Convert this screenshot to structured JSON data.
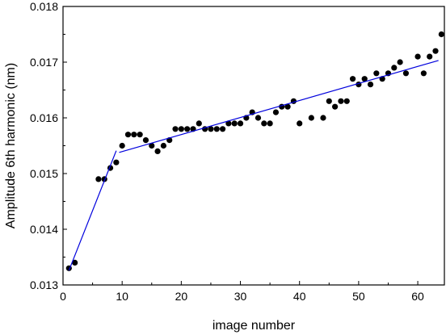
{
  "chart_data": {
    "type": "scatter",
    "title": "",
    "xlabel": "image number",
    "ylabel": "Amplitude 6th harmonic (nm)",
    "xlim": [
      0,
      64.5
    ],
    "ylim": [
      0.013,
      0.018
    ],
    "x_ticks": [
      0,
      10,
      20,
      30,
      40,
      50,
      60
    ],
    "y_ticks": [
      0.013,
      0.014,
      0.015,
      0.016,
      0.017,
      0.018
    ],
    "x_tick_labels": [
      "0",
      "10",
      "20",
      "30",
      "40",
      "50",
      "60"
    ],
    "y_tick_labels": [
      "0.013",
      "0.014",
      "0.015",
      "0.016",
      "0.017",
      "0.018"
    ],
    "grid": false,
    "legend": "none",
    "series": [
      {
        "kind": "points",
        "color": "#000000",
        "points": [
          [
            1,
            0.0133
          ],
          [
            2,
            0.0134
          ],
          [
            6,
            0.0149
          ],
          [
            7,
            0.0149
          ],
          [
            8,
            0.0151
          ],
          [
            9,
            0.0152
          ],
          [
            10,
            0.0155
          ],
          [
            11,
            0.0157
          ],
          [
            12,
            0.0157
          ],
          [
            13,
            0.0157
          ],
          [
            14,
            0.0156
          ],
          [
            15,
            0.0155
          ],
          [
            16,
            0.0154
          ],
          [
            17,
            0.0155
          ],
          [
            18,
            0.0156
          ],
          [
            19,
            0.0158
          ],
          [
            20,
            0.0158
          ],
          [
            21,
            0.0158
          ],
          [
            22,
            0.0158
          ],
          [
            23,
            0.0159
          ],
          [
            24,
            0.0158
          ],
          [
            25,
            0.0158
          ],
          [
            26,
            0.0158
          ],
          [
            27,
            0.0158
          ],
          [
            28,
            0.0159
          ],
          [
            29,
            0.0159
          ],
          [
            30,
            0.0159
          ],
          [
            31,
            0.016
          ],
          [
            32,
            0.0161
          ],
          [
            33,
            0.016
          ],
          [
            34,
            0.0159
          ],
          [
            35,
            0.0159
          ],
          [
            36,
            0.0161
          ],
          [
            37,
            0.0162
          ],
          [
            38,
            0.0162
          ],
          [
            39,
            0.0163
          ],
          [
            40,
            0.0159
          ],
          [
            42,
            0.016
          ],
          [
            44,
            0.016
          ],
          [
            45,
            0.0163
          ],
          [
            46,
            0.0162
          ],
          [
            47,
            0.0163
          ],
          [
            48,
            0.0163
          ],
          [
            49,
            0.0167
          ],
          [
            50,
            0.0166
          ],
          [
            51,
            0.0167
          ],
          [
            52,
            0.0166
          ],
          [
            53,
            0.0168
          ],
          [
            54,
            0.0167
          ],
          [
            55,
            0.0168
          ],
          [
            56,
            0.0169
          ],
          [
            57,
            0.017
          ],
          [
            58,
            0.0168
          ],
          [
            60,
            0.0171
          ],
          [
            61,
            0.0168
          ],
          [
            62,
            0.0171
          ],
          [
            63,
            0.0172
          ],
          [
            64,
            0.0175
          ]
        ]
      },
      {
        "kind": "line",
        "color": "#0000dd",
        "points": [
          [
            1,
            0.01326
          ],
          [
            9,
            0.01541
          ]
        ]
      },
      {
        "kind": "line",
        "color": "#0000dd",
        "points": [
          [
            9.5,
            0.01538
          ],
          [
            63.5,
            0.01703
          ]
        ]
      }
    ]
  }
}
